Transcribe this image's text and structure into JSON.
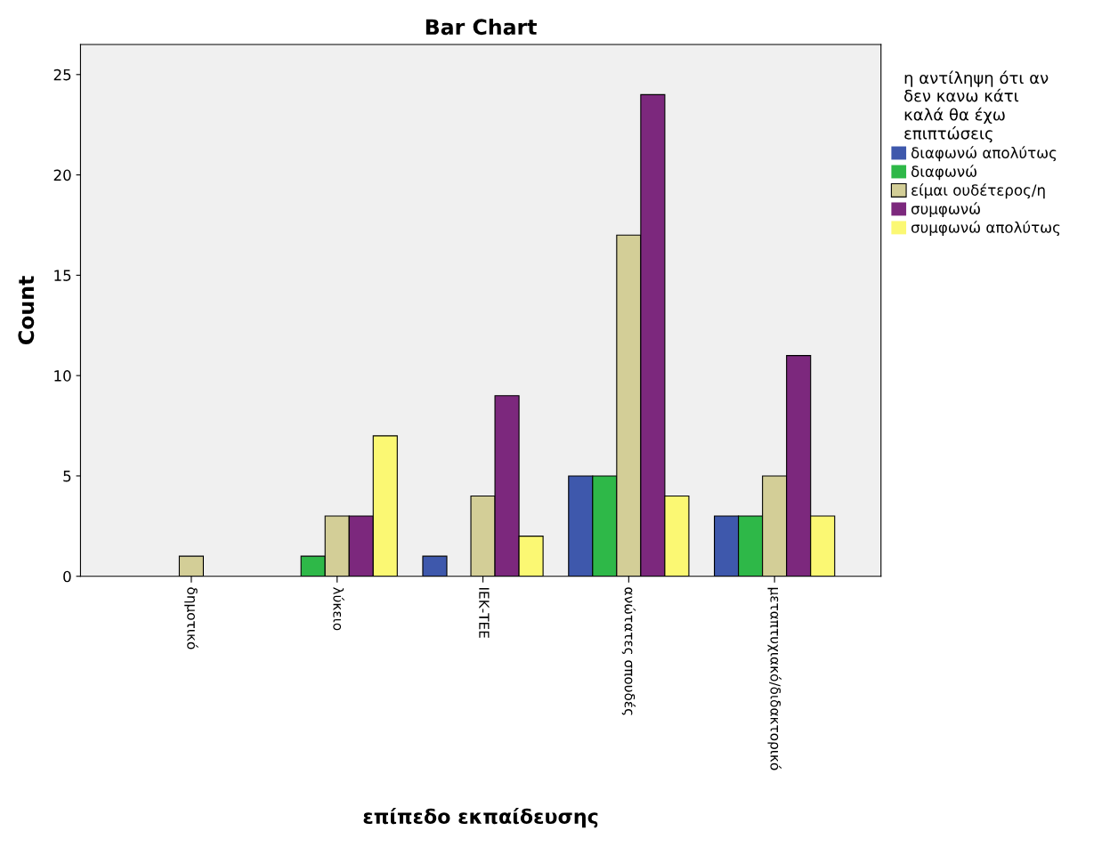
{
  "chart_data": {
    "type": "bar",
    "title": "Bar Chart",
    "xlabel": "επίπεδο εκπαίδευσης",
    "ylabel": "Count",
    "legend_title": "η αντίληψη ότι αν\nδεν κανω κάτι\nκαλά θα έχω\nεπιπτώσεις",
    "categories": [
      "δημοτικό",
      "λύκειο",
      "ΙΕΚ-ΤΕΕ",
      "ανώτατες σπουδές",
      "μεταπτυχιακό/διδακτορικό"
    ],
    "series": [
      {
        "name": "διαφωνώ απολύτως",
        "color": "#3e58ac",
        "values": [
          0,
          0,
          1,
          5,
          3
        ]
      },
      {
        "name": "διαφωνώ",
        "color": "#2eb848",
        "values": [
          0,
          1,
          0,
          5,
          3
        ]
      },
      {
        "name": "είμαι ουδέτερος/η",
        "color": "#d3ce97",
        "values": [
          1,
          3,
          4,
          17,
          5
        ]
      },
      {
        "name": "συμφωνώ",
        "color": "#7c287d",
        "values": [
          0,
          3,
          9,
          24,
          11
        ]
      },
      {
        "name": "συμφωνώ απολύτως",
        "color": "#fbf873",
        "values": [
          0,
          7,
          2,
          4,
          3
        ]
      }
    ],
    "ylim": [
      0,
      26.5
    ],
    "yticks": [
      0,
      5,
      10,
      15,
      20,
      25
    ],
    "grid": false,
    "legend": "right"
  }
}
